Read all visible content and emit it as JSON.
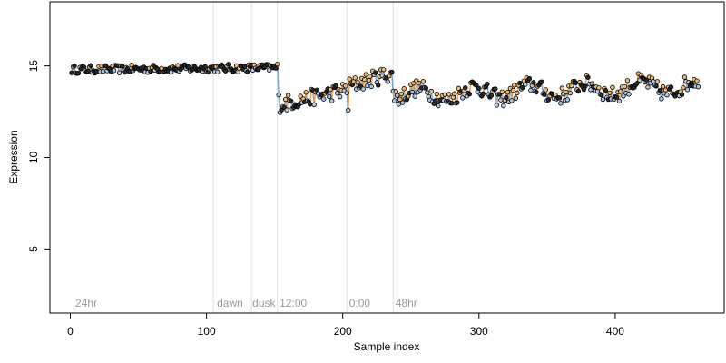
{
  "chart_data": {
    "type": "scatter",
    "title": "",
    "xlabel": "Sample index",
    "ylabel": "Expression",
    "xlim": [
      -15,
      480
    ],
    "ylim": [
      1.5,
      18.5
    ],
    "x_ticks": [
      0,
      100,
      200,
      300,
      400
    ],
    "y_ticks": [
      5,
      10,
      15
    ],
    "grid": false,
    "legend": null,
    "vlines": [
      105,
      133,
      152,
      203,
      237
    ],
    "annotations": [
      {
        "label": "24hr",
        "x": 3
      },
      {
        "label": "dawn",
        "x": 107
      },
      {
        "label": "dusk",
        "x": 133
      },
      {
        "label": "12:00",
        "x": 153
      },
      {
        "label": "0:00",
        "x": 204
      },
      {
        "label": "48hr",
        "x": 238
      }
    ],
    "colors": {
      "high": "#f0b872",
      "low": "#a9c6e8",
      "mid": "#2a2a2a",
      "line_up": "#e7a85a",
      "line_down": "#7fa8dc",
      "vline": "#dedede"
    },
    "series": [
      {
        "x": [
          1,
          152,
          153,
          154,
          203,
          204,
          205,
          235,
          236,
          237,
          461
        ],
        "y": [
          14.8,
          14.9,
          13.1,
          12.9,
          13.7,
          12.8,
          13.9,
          14.6,
          14.5,
          13.4,
          13.9
        ]
      }
    ]
  },
  "axis": {
    "xlabel": "Sample index",
    "ylabel": "Expression"
  }
}
